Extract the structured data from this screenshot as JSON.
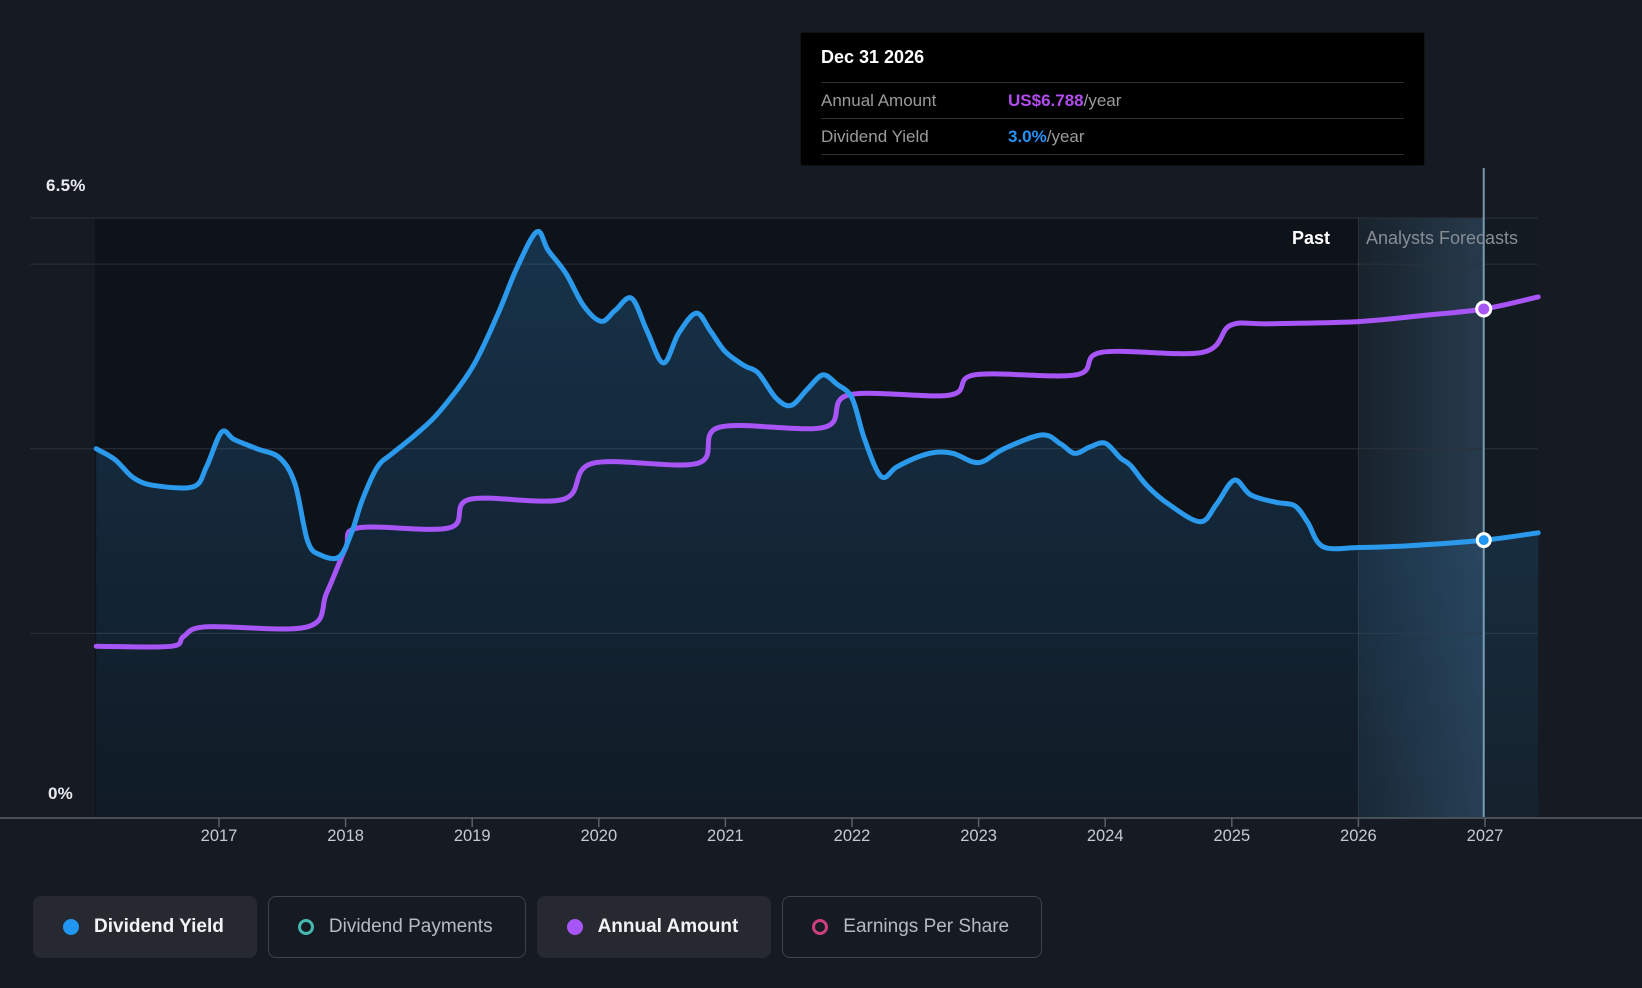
{
  "tooltip": {
    "title": "Dec 31 2026",
    "rows": [
      {
        "label": "Annual Amount",
        "value": "US$6.788",
        "suffix": "/year",
        "color": "#b14cf0"
      },
      {
        "label": "Dividend Yield",
        "value": "3.0%",
        "suffix": "/year",
        "color": "#2692f5"
      }
    ]
  },
  "chart": {
    "y_axis": {
      "max_label": "6.5%",
      "min_label": "0%"
    },
    "regions": {
      "past_label": "Past",
      "forecast_label": "Analysts Forecasts"
    }
  },
  "legend": {
    "items": [
      {
        "label": "Dividend Yield",
        "color": "#2196f3",
        "style": "filled",
        "active": true
      },
      {
        "label": "Dividend Payments",
        "color": "#45b8b0",
        "style": "hollow",
        "active": false
      },
      {
        "label": "Annual Amount",
        "color": "#a855f7",
        "style": "filled",
        "active": true
      },
      {
        "label": "Earnings Per Share",
        "color": "#cc3e7d",
        "style": "hollow",
        "active": false
      }
    ]
  },
  "chart_data": {
    "type": "area",
    "title": "Dividend yield history and analysts forecast",
    "x_axis": {
      "tick_labels": [
        "2017",
        "2018",
        "2019",
        "2020",
        "2021",
        "2022",
        "2023",
        "2024",
        "2025",
        "2026",
        "2027"
      ],
      "tick_years": [
        2017,
        2018,
        2019,
        2020,
        2021,
        2022,
        2023,
        2024,
        2025,
        2026,
        2027
      ],
      "range": [
        2016.03,
        2027.42
      ]
    },
    "y_axis": {
      "unit": "percent",
      "range": [
        0,
        6.5
      ],
      "gridlines_pct": [
        2,
        4,
        6,
        6.5
      ],
      "labeled": {
        "max": 6.5,
        "min": 0
      }
    },
    "forecast_start_year": 2026.0,
    "hover": {
      "x_year": 2026.99,
      "band": [
        2026.0,
        2026.99
      ]
    },
    "series": [
      {
        "name": "Dividend Yield",
        "unit": "percent",
        "color": "#2b99ec",
        "fill": true,
        "marker": {
          "x": 2026.99,
          "y": 3.01
        },
        "points": [
          [
            2016.03,
            4.0
          ],
          [
            2016.18,
            3.88
          ],
          [
            2016.33,
            3.68
          ],
          [
            2016.5,
            3.6
          ],
          [
            2016.8,
            3.59
          ],
          [
            2016.9,
            3.8
          ],
          [
            2017.02,
            4.18
          ],
          [
            2017.12,
            4.1
          ],
          [
            2017.3,
            4.0
          ],
          [
            2017.48,
            3.9
          ],
          [
            2017.6,
            3.62
          ],
          [
            2017.7,
            3.0
          ],
          [
            2017.8,
            2.85
          ],
          [
            2017.95,
            2.83
          ],
          [
            2018.05,
            3.1
          ],
          [
            2018.13,
            3.44
          ],
          [
            2018.25,
            3.8
          ],
          [
            2018.37,
            3.95
          ],
          [
            2018.55,
            4.15
          ],
          [
            2018.74,
            4.4
          ],
          [
            2019.0,
            4.88
          ],
          [
            2019.2,
            5.45
          ],
          [
            2019.35,
            5.95
          ],
          [
            2019.51,
            6.35
          ],
          [
            2019.6,
            6.15
          ],
          [
            2019.74,
            5.9
          ],
          [
            2019.88,
            5.55
          ],
          [
            2020.02,
            5.38
          ],
          [
            2020.13,
            5.5
          ],
          [
            2020.26,
            5.63
          ],
          [
            2020.38,
            5.28
          ],
          [
            2020.51,
            4.93
          ],
          [
            2020.63,
            5.25
          ],
          [
            2020.77,
            5.47
          ],
          [
            2020.88,
            5.28
          ],
          [
            2021.0,
            5.05
          ],
          [
            2021.15,
            4.9
          ],
          [
            2021.26,
            4.82
          ],
          [
            2021.4,
            4.55
          ],
          [
            2021.52,
            4.47
          ],
          [
            2021.65,
            4.65
          ],
          [
            2021.77,
            4.8
          ],
          [
            2021.88,
            4.7
          ],
          [
            2022.0,
            4.55
          ],
          [
            2022.1,
            4.1
          ],
          [
            2022.23,
            3.7
          ],
          [
            2022.35,
            3.8
          ],
          [
            2022.5,
            3.9
          ],
          [
            2022.65,
            3.96
          ],
          [
            2022.8,
            3.95
          ],
          [
            2023.0,
            3.85
          ],
          [
            2023.2,
            4.0
          ],
          [
            2023.5,
            4.15
          ],
          [
            2023.65,
            4.05
          ],
          [
            2023.76,
            3.95
          ],
          [
            2023.88,
            4.02
          ],
          [
            2024.0,
            4.06
          ],
          [
            2024.12,
            3.9
          ],
          [
            2024.2,
            3.82
          ],
          [
            2024.33,
            3.6
          ],
          [
            2024.5,
            3.4
          ],
          [
            2024.75,
            3.21
          ],
          [
            2024.88,
            3.4
          ],
          [
            2025.02,
            3.66
          ],
          [
            2025.15,
            3.5
          ],
          [
            2025.35,
            3.42
          ],
          [
            2025.5,
            3.38
          ],
          [
            2025.6,
            3.2
          ],
          [
            2025.72,
            2.94
          ],
          [
            2026.0,
            2.93
          ],
          [
            2026.4,
            2.95
          ],
          [
            2026.99,
            3.01
          ],
          [
            2027.42,
            3.09
          ]
        ]
      },
      {
        "name": "Annual Amount",
        "unit": "usd_per_year",
        "color": "#a855f7",
        "fill": false,
        "usd_max": 6.788,
        "marker": {
          "x": 2026.99,
          "y": 6.788
        },
        "points": [
          [
            2016.03,
            2.29
          ],
          [
            2016.62,
            2.29
          ],
          [
            2016.72,
            2.42
          ],
          [
            2016.9,
            2.55
          ],
          [
            2017.7,
            2.55
          ],
          [
            2017.85,
            3.0
          ],
          [
            2018.0,
            3.6
          ],
          [
            2018.1,
            3.87
          ],
          [
            2018.82,
            3.87
          ],
          [
            2018.98,
            4.25
          ],
          [
            2019.72,
            4.25
          ],
          [
            2019.95,
            4.73
          ],
          [
            2020.78,
            4.73
          ],
          [
            2020.95,
            5.21
          ],
          [
            2021.78,
            5.21
          ],
          [
            2021.97,
            5.64
          ],
          [
            2022.77,
            5.64
          ],
          [
            2022.97,
            5.91
          ],
          [
            2023.77,
            5.91
          ],
          [
            2023.97,
            6.21
          ],
          [
            2024.77,
            6.21
          ],
          [
            2024.99,
            6.57
          ],
          [
            2025.3,
            6.59
          ],
          [
            2026.0,
            6.62
          ],
          [
            2026.5,
            6.7
          ],
          [
            2026.99,
            6.788
          ],
          [
            2027.42,
            6.95
          ]
        ]
      }
    ]
  }
}
